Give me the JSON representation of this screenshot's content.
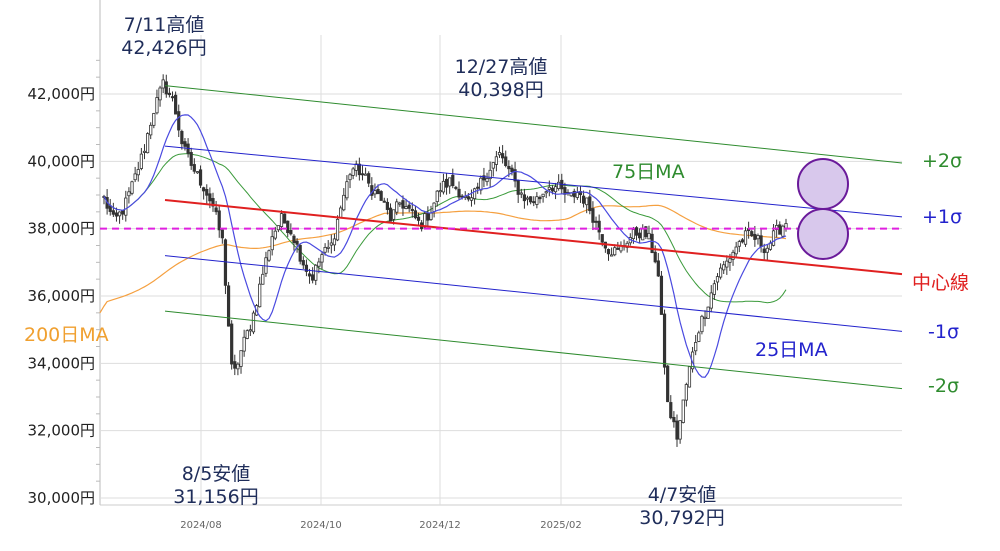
{
  "chart_data": {
    "type": "candlestick",
    "y_unit": "円",
    "ylim": [
      30000,
      42000
    ],
    "y_ticks": [
      "30,000円",
      "32,000円",
      "34,000円",
      "36,000円",
      "38,000円",
      "40,000円",
      "42,000円"
    ],
    "y_tick_values": [
      30000,
      32000,
      34000,
      36000,
      38000,
      40000,
      42000
    ],
    "x_ticks": [
      "2024/08",
      "2024/10",
      "2024/12",
      "2025/02"
    ],
    "grid": true,
    "reference_line": {
      "value": 38000,
      "color": "#e020e0",
      "style": "dashed"
    },
    "annotations": [
      {
        "name": "high-2024",
        "date": "7/11高値",
        "value": "42,426円",
        "y": 42426
      },
      {
        "name": "high-dec",
        "date": "12/27高値",
        "value": "40,398円",
        "y": 40398
      },
      {
        "name": "low-aug",
        "date": "8/5安値",
        "value": "31,156円",
        "y": 31156
      },
      {
        "name": "low-apr",
        "date": "4/7安値",
        "value": "30,792円",
        "y": 30792
      }
    ],
    "series": [
      {
        "name": "75日MA",
        "color": "#2e8b2e"
      },
      {
        "name": "25日MA",
        "color": "#2222cc"
      },
      {
        "name": "200日MA",
        "color": "#f5a040"
      }
    ],
    "regression_channel": [
      {
        "name": "+2σ",
        "color": "#2e8b2e",
        "start": 42250,
        "end": 39950
      },
      {
        "name": "+1σ",
        "color": "#2222cc",
        "start": 40450,
        "end": 38350
      },
      {
        "name": "中心線",
        "color": "#e02020",
        "start": 38850,
        "end": 36650
      },
      {
        "name": "-1σ",
        "color": "#2222cc",
        "start": 37200,
        "end": 34950
      },
      {
        "name": "-2σ",
        "color": "#2e8b2e",
        "start": 35550,
        "end": 33250
      }
    ],
    "close_path": [
      38900,
      38200,
      38600,
      39400,
      40300,
      41500,
      42300,
      41800,
      40400,
      39800,
      39300,
      38700,
      37600,
      33500,
      34500,
      35300,
      36600,
      37800,
      38300,
      37900,
      37100,
      36500,
      37200,
      37500,
      38700,
      39800,
      39700,
      39200,
      38900,
      38300,
      38800,
      38500,
      38100,
      38500,
      39200,
      39400,
      39100,
      38700,
      39300,
      39800,
      40200,
      39700,
      39100,
      38800,
      38900,
      39300,
      39200,
      38900,
      39100,
      38700,
      38000,
      37400,
      37300,
      37700,
      37900,
      37800,
      36900,
      32800,
      31800,
      33500,
      34900,
      35700,
      36600,
      37000,
      37500,
      37800,
      37700,
      37400,
      37900,
      38200
    ]
  },
  "labels": {
    "high_2024_date": "7/11高値",
    "high_2024_value": "42,426円",
    "high_dec_date": "12/27高値",
    "high_dec_value": "40,398円",
    "low_aug_date": "8/5安値",
    "low_aug_value": "31,156円",
    "low_apr_date": "4/7安値",
    "low_apr_value": "30,792円",
    "ma75": "75日MA",
    "ma25": "25日MA",
    "ma200": "200日MA",
    "plus2": "+2σ",
    "plus1": "+1σ",
    "center": "中心線",
    "minus1": "-1σ",
    "minus2": "-2σ"
  }
}
